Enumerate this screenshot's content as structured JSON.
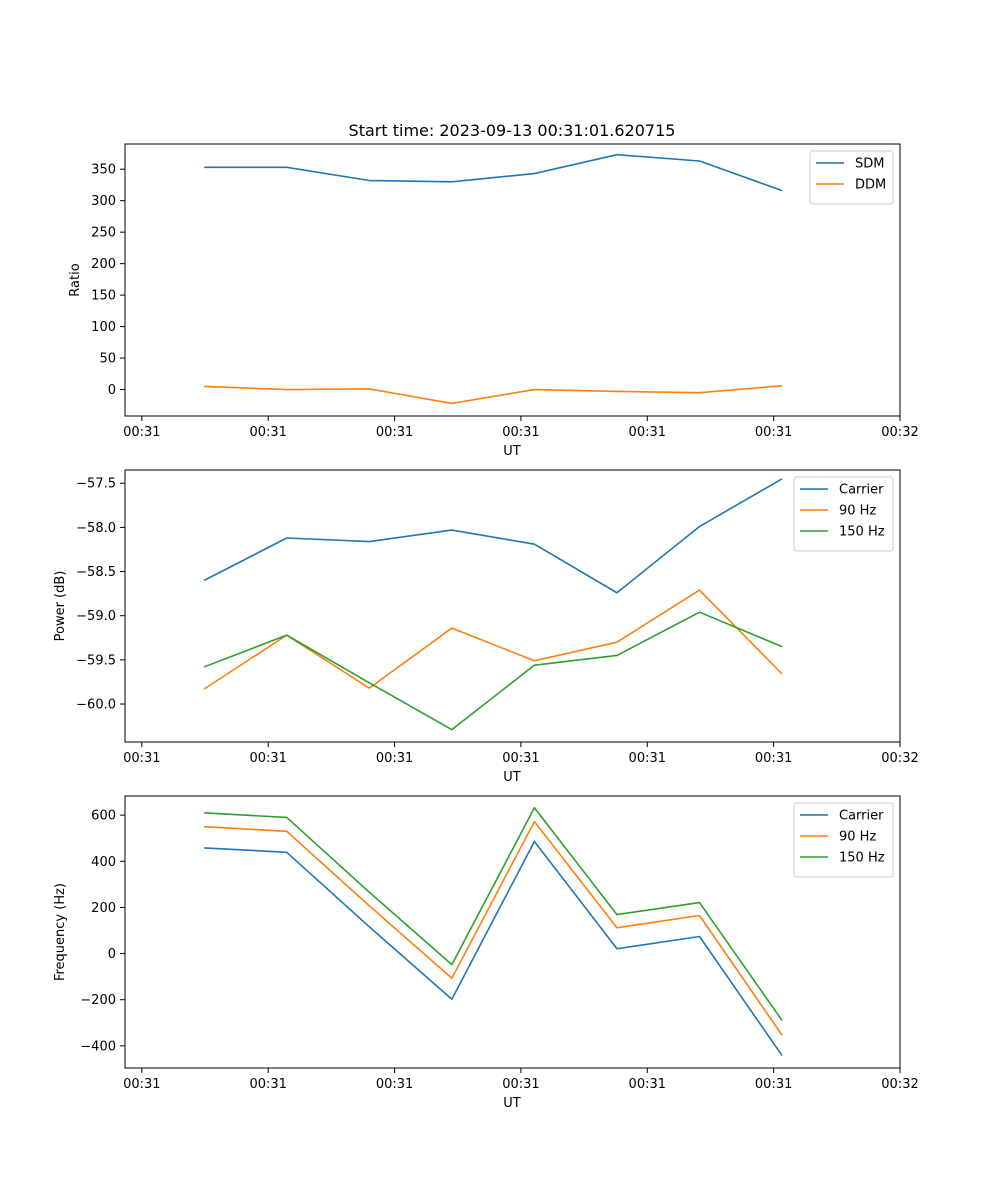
{
  "chart_data": {
    "title": "Start time: 2023-09-13 00:31:01.620715",
    "colors": {
      "blue": "#1f77b4",
      "orange": "#ff7f0e",
      "green": "#2ca02c"
    },
    "subplots": [
      {
        "type": "line",
        "xlabel": "UT",
        "ylabel": "Ratio",
        "xlim": [
          -0.2,
          9.0
        ],
        "ylim": [
          -42,
          390
        ],
        "x_ticks": [
          0,
          1.5,
          3,
          4.5,
          6,
          7.5,
          9
        ],
        "x_tick_labels": [
          "00:31",
          "00:31",
          "00:31",
          "00:31",
          "00:31",
          "00:31",
          "00:32"
        ],
        "y_ticks": [
          0,
          50,
          100,
          150,
          200,
          250,
          300,
          350
        ],
        "y_tick_labels": [
          "0",
          "50",
          "100",
          "150",
          "200",
          "250",
          "300",
          "350"
        ],
        "legend_position": "upper-right",
        "x": [
          0.74,
          1.72,
          2.7,
          3.68,
          4.66,
          5.64,
          6.62,
          7.6
        ],
        "series": [
          {
            "name": "SDM",
            "color": "#1f77b4",
            "values": [
              353,
              353,
              332,
              330,
              343,
              373,
              363,
              316
            ]
          },
          {
            "name": "DDM",
            "color": "#ff7f0e",
            "values": [
              5,
              0,
              1,
              -22,
              0,
              -3,
              -5,
              6
            ]
          }
        ]
      },
      {
        "type": "line",
        "xlabel": "UT",
        "ylabel": "Power (dB)",
        "xlim": [
          -0.2,
          9.0
        ],
        "ylim": [
          -60.43,
          -57.35
        ],
        "x_ticks": [
          0,
          1.5,
          3,
          4.5,
          6,
          7.5,
          9
        ],
        "x_tick_labels": [
          "00:31",
          "00:31",
          "00:31",
          "00:31",
          "00:31",
          "00:31",
          "00:32"
        ],
        "y_ticks": [
          -60.0,
          -59.5,
          -59.0,
          -58.5,
          -58.0,
          -57.5
        ],
        "y_tick_labels": [
          "−60.0",
          "−59.5",
          "−59.0",
          "−58.5",
          "−58.0",
          "−57.5"
        ],
        "legend_position": "upper-right",
        "x": [
          0.74,
          1.72,
          2.7,
          3.68,
          4.66,
          5.64,
          6.62,
          7.6
        ],
        "series": [
          {
            "name": "Carrier",
            "color": "#1f77b4",
            "values": [
              -58.6,
              -58.12,
              -58.16,
              -58.03,
              -58.19,
              -58.74,
              -57.99,
              -57.45
            ]
          },
          {
            "name": "90 Hz",
            "color": "#ff7f0e",
            "values": [
              -59.83,
              -59.22,
              -59.82,
              -59.14,
              -59.51,
              -59.3,
              -58.71,
              -59.66
            ]
          },
          {
            "name": "150 Hz",
            "color": "#2ca02c",
            "values": [
              -59.58,
              -59.22,
              -59.76,
              -60.29,
              -59.56,
              -59.45,
              -58.96,
              -59.35
            ]
          }
        ]
      },
      {
        "type": "line",
        "xlabel": "UT",
        "ylabel": "Frequency (Hz)",
        "xlim": [
          -0.2,
          9.0
        ],
        "ylim": [
          -496,
          683
        ],
        "x_ticks": [
          0,
          1.5,
          3,
          4.5,
          6,
          7.5,
          9
        ],
        "x_tick_labels": [
          "00:31",
          "00:31",
          "00:31",
          "00:31",
          "00:31",
          "00:31",
          "00:32"
        ],
        "y_ticks": [
          -400,
          -200,
          0,
          200,
          400,
          600
        ],
        "y_tick_labels": [
          "−400",
          "−200",
          "0",
          "200",
          "400",
          "600"
        ],
        "legend_position": "upper-right",
        "x": [
          0.74,
          1.72,
          2.7,
          3.68,
          4.66,
          5.64,
          6.62,
          7.6
        ],
        "series": [
          {
            "name": "Carrier",
            "color": "#1f77b4",
            "values": [
              458,
              439,
              116,
              -198,
              486,
              21,
              74,
              -442
            ]
          },
          {
            "name": "90 Hz",
            "color": "#ff7f0e",
            "values": [
              550,
              530,
              207,
              -107,
              572,
              112,
              165,
              -354
            ]
          },
          {
            "name": "150 Hz",
            "color": "#2ca02c",
            "values": [
              610,
              590,
              266,
              -48,
              632,
              169,
              221,
              -290
            ]
          }
        ]
      }
    ]
  }
}
